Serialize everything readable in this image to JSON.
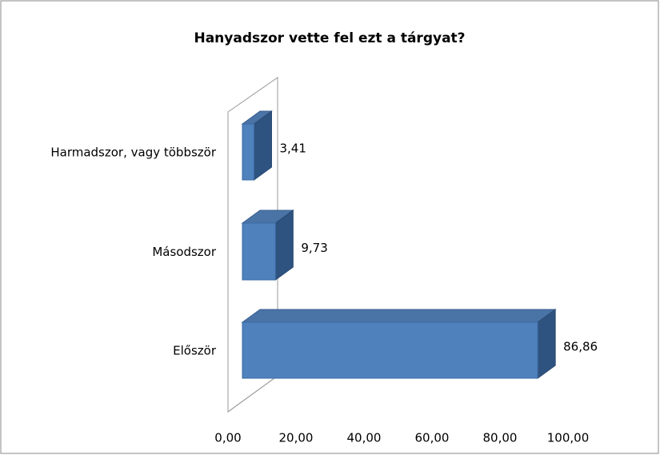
{
  "chart_data": {
    "type": "bar3d_horizontal",
    "title": "Hanyadszor vette fel ezt a tárgyat?",
    "categories": [
      "Először",
      "Másodszor",
      "Harmadszor, vagy többször"
    ],
    "values": [
      86.86,
      9.73,
      3.41
    ],
    "value_labels": [
      "86,86",
      "9,73",
      "3,41"
    ],
    "color": "#4f81bd",
    "xlim": [
      0,
      100
    ],
    "xticks": [
      {
        "value": 0,
        "label": "0,00"
      },
      {
        "value": 20,
        "label": "20,00"
      },
      {
        "value": 40,
        "label": "40,00"
      },
      {
        "value": 60,
        "label": "60,00"
      },
      {
        "value": 80,
        "label": "80,00"
      },
      {
        "value": 100,
        "label": "100,00"
      }
    ],
    "grid": false
  }
}
